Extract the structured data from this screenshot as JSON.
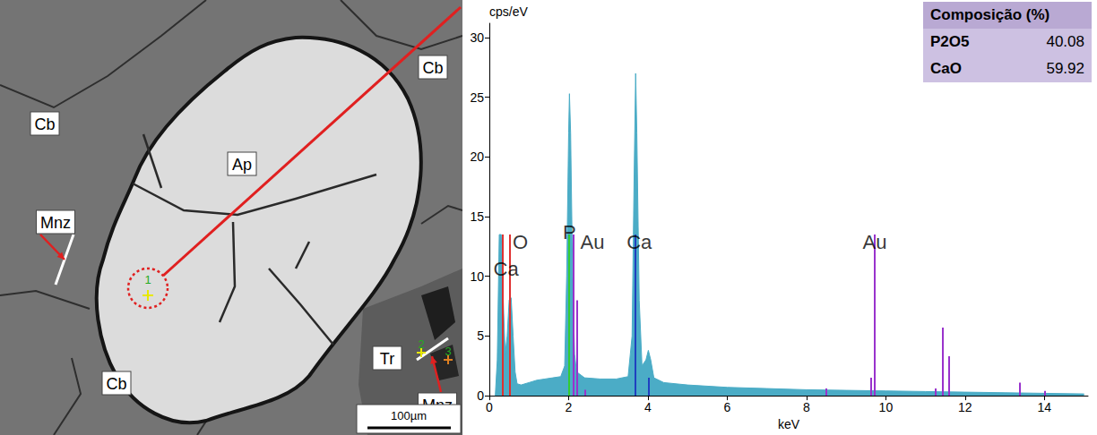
{
  "image": {
    "labels": [
      "Cb",
      "Cb",
      "Ap",
      "Mnz",
      "Cb",
      "Tr",
      "Mnz"
    ],
    "points": [
      "1",
      "2",
      "3"
    ],
    "scale_bar": "100µm"
  },
  "chart_data": {
    "type": "area",
    "y_label": "cps/eV",
    "x_label": "keV",
    "color": "#4bacc6",
    "grid": false,
    "x": [
      0.15,
      0.2,
      0.25,
      0.3,
      0.35,
      0.4,
      0.45,
      0.5,
      0.55,
      0.6,
      0.65,
      0.7,
      0.8,
      1.0,
      1.2,
      1.4,
      1.6,
      1.8,
      1.9,
      1.95,
      2.0,
      2.02,
      2.05,
      2.1,
      2.15,
      2.2,
      2.4,
      2.8,
      3.2,
      3.5,
      3.6,
      3.65,
      3.69,
      3.72,
      3.78,
      3.85,
      3.95,
      4.01,
      4.07,
      4.15,
      4.4,
      5,
      6,
      7,
      8,
      9,
      10,
      11,
      12,
      13,
      14,
      15
    ],
    "values": [
      0,
      3,
      13.5,
      13.5,
      8,
      3.5,
      5,
      8,
      8.2,
      5,
      2,
      1,
      0.9,
      1.1,
      1.3,
      1.4,
      1.5,
      1.6,
      2.5,
      10,
      22,
      25.3,
      22,
      10,
      3.5,
      2,
      1.5,
      1.4,
      1.4,
      1.6,
      5,
      18,
      27,
      22,
      8,
      2.5,
      3,
      3.8,
      3,
      1.5,
      1.1,
      0.9,
      0.7,
      0.6,
      0.5,
      0.45,
      0.4,
      0.35,
      0.3,
      0.25,
      0.2,
      0.15
    ],
    "xlim": [
      0,
      15.1
    ],
    "xticks": [
      0,
      2,
      4,
      6,
      8,
      10,
      12,
      14
    ],
    "ylim": [
      0,
      31.2
    ],
    "yticks": [
      0,
      5,
      10,
      15,
      20,
      25,
      30
    ],
    "element_lines": [
      {
        "name": "Ca",
        "color": "#e03030",
        "x": [
          0.34
        ],
        "values": [
          13.5
        ],
        "label_positions": [
          [
            0.42,
            10.6
          ]
        ]
      },
      {
        "name": "O",
        "color": "#e03030",
        "x": [
          0.525
        ],
        "values": [
          13.5
        ],
        "label_positions": [
          [
            0.78,
            12.9
          ]
        ]
      },
      {
        "name": "P",
        "color": "#33cc33",
        "x": [
          2.013
        ],
        "values": [
          13.5
        ],
        "label_positions": [
          [
            2.02,
            13.7
          ]
        ]
      },
      {
        "name": "Au",
        "color": "#9933cc",
        "x": [
          2.12,
          2.2,
          2.41,
          8.49,
          9.63,
          9.71,
          11.25,
          11.44,
          11.58,
          13.38,
          14.0
        ],
        "values": [
          13.5,
          8,
          0.5,
          0.6,
          1.5,
          13.5,
          0.6,
          5.7,
          3.3,
          1.1,
          0.4
        ],
        "label_positions": [
          [
            2.6,
            12.9
          ],
          [
            9.72,
            12.9
          ]
        ]
      },
      {
        "name": "Ca",
        "color": "#2040c0",
        "x": [
          3.69,
          4.01
        ],
        "values": [
          13.5,
          1.5
        ],
        "label_positions": [
          [
            3.78,
            12.9
          ]
        ]
      }
    ]
  },
  "composition": {
    "title": "Composição (%)",
    "rows": [
      {
        "name": "P2O5",
        "value": 40.08
      },
      {
        "name": "CaO",
        "value": 59.92
      }
    ]
  }
}
